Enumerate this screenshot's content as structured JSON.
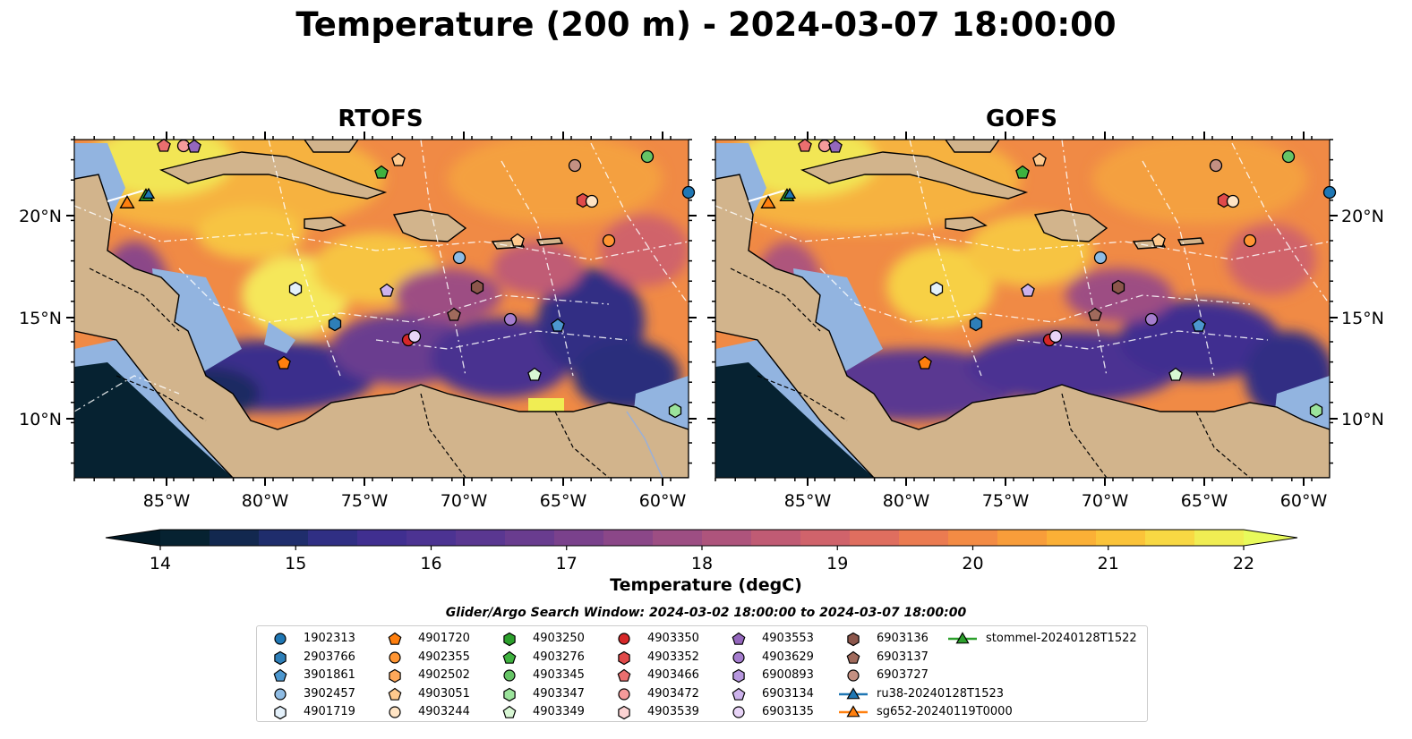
{
  "title": "Temperature (200 m) - 2024-03-07 18:00:00",
  "panels": [
    {
      "title": "RTOFS"
    },
    {
      "title": "GOFS"
    }
  ],
  "axes": {
    "x_ticks": [
      "85°W",
      "80°W",
      "75°W",
      "70°W",
      "65°W",
      "60°W"
    ],
    "y_ticks": [
      "20°N",
      "15°N",
      "10°N"
    ]
  },
  "colorbar": {
    "label": "Temperature (degC)",
    "min": 14,
    "max": 22,
    "ticks": [
      "14",
      "15",
      "16",
      "17",
      "18",
      "19",
      "20",
      "21",
      "22"
    ],
    "colors": [
      "#062231",
      "#12284f",
      "#1f2d6c",
      "#302f84",
      "#402f90",
      "#4c3392",
      "#5a3791",
      "#693c8f",
      "#7a418c",
      "#8b4788",
      "#9d4e83",
      "#ae547c",
      "#c05b74",
      "#d0636b",
      "#df6e5f",
      "#eb7b51",
      "#f38b44",
      "#f89d3a",
      "#fbb036",
      "#fbc339",
      "#f8d843",
      "#f0ed53"
    ],
    "extend_low": "#021a26",
    "extend_high": "#e8fa5b"
  },
  "search_window": "Glider/Argo Search Window: 2024-03-02 18:00:00 to 2024-03-07 18:00:00",
  "legend": [
    {
      "label": "1902313",
      "marker": "circle",
      "color": "#1f77b4"
    },
    {
      "label": "2903766",
      "marker": "hexagon",
      "color": "#2e7fb8"
    },
    {
      "label": "3901861",
      "marker": "pentagon",
      "color": "#4c97cf"
    },
    {
      "label": "3902457",
      "marker": "circle",
      "color": "#8fbce4"
    },
    {
      "label": "4901719",
      "marker": "hexagon",
      "color": "#e4f1fb"
    },
    {
      "label": "4901720",
      "marker": "pentagon",
      "color": "#ff7f0e"
    },
    {
      "label": "4902355",
      "marker": "circle",
      "color": "#ff9533"
    },
    {
      "label": "4902502",
      "marker": "hexagon",
      "color": "#ffa85a"
    },
    {
      "label": "4903051",
      "marker": "pentagon",
      "color": "#ffc98d"
    },
    {
      "label": "4903244",
      "marker": "circle",
      "color": "#ffe4c4"
    },
    {
      "label": "4903250",
      "marker": "hexagon",
      "color": "#2ca02c"
    },
    {
      "label": "4903276",
      "marker": "pentagon",
      "color": "#3fb23f"
    },
    {
      "label": "4903345",
      "marker": "circle",
      "color": "#66c466"
    },
    {
      "label": "4903347",
      "marker": "hexagon",
      "color": "#9be39b"
    },
    {
      "label": "4903349",
      "marker": "pentagon",
      "color": "#d8f7d4"
    },
    {
      "label": "4903350",
      "marker": "circle",
      "color": "#d62728"
    },
    {
      "label": "4903352",
      "marker": "hexagon",
      "color": "#e04a4a"
    },
    {
      "label": "4903466",
      "marker": "pentagon",
      "color": "#ea6f6f"
    },
    {
      "label": "4903472",
      "marker": "circle",
      "color": "#f59b9b"
    },
    {
      "label": "4903539",
      "marker": "hexagon",
      "color": "#fcd3d3"
    },
    {
      "label": "4903553",
      "marker": "pentagon",
      "color": "#9467bd"
    },
    {
      "label": "4903629",
      "marker": "circle",
      "color": "#a57dce"
    },
    {
      "label": "6900893",
      "marker": "hexagon",
      "color": "#b797de"
    },
    {
      "label": "6903134",
      "marker": "pentagon",
      "color": "#cdb3ec"
    },
    {
      "label": "6903135",
      "marker": "circle",
      "color": "#e8d4f7"
    },
    {
      "label": "6903136",
      "marker": "hexagon",
      "color": "#8c564b"
    },
    {
      "label": "6903137",
      "marker": "pentagon",
      "color": "#a06a5c"
    },
    {
      "label": "6903727",
      "marker": "circle",
      "color": "#c49082"
    },
    {
      "label": "ru38-20240128T1523",
      "marker": "triangle-line",
      "color": "#1f77b4"
    },
    {
      "label": "sg652-20240119T0000",
      "marker": "triangle-line",
      "color": "#ff7f0e"
    },
    {
      "label": "stommel-20240128T1522",
      "marker": "triangle-line",
      "color": "#2ca02c"
    }
  ]
}
